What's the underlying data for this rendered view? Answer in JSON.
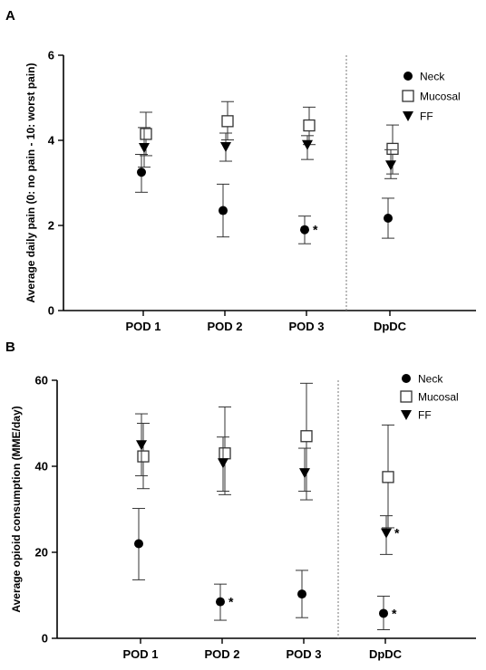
{
  "chart_data": [
    {
      "type": "scatter",
      "panel": "A",
      "title": "",
      "ylabel": "Average daily pain (0: no pain - 10: worst pain)",
      "xlabel": "",
      "categories": [
        "POD 1",
        "POD 2",
        "POD 3",
        "DpDC"
      ],
      "ylim": [
        0,
        6
      ],
      "yticks": [
        "0",
        "2",
        "4",
        "6"
      ],
      "grid": false,
      "legend": "top-right",
      "separator_after_category": 2,
      "series": [
        {
          "name": "Neck",
          "marker": "filled-circle",
          "values": [
            3.25,
            2.35,
            1.9,
            2.17
          ],
          "err_low": [
            2.78,
            1.73,
            1.57,
            1.7
          ],
          "err_high": [
            3.67,
            2.97,
            2.22,
            2.64
          ],
          "annotations": [
            "",
            "",
            "*",
            ""
          ]
        },
        {
          "name": "Mucosal",
          "marker": "open-square",
          "values": [
            4.15,
            4.45,
            4.35,
            3.8
          ],
          "err_low": [
            3.64,
            4.01,
            3.9,
            3.21
          ],
          "err_high": [
            4.66,
            4.91,
            4.78,
            4.36
          ],
          "annotations": [
            "",
            "",
            "",
            ""
          ]
        },
        {
          "name": "FF",
          "marker": "filled-triangle-down",
          "values": [
            3.83,
            3.85,
            3.9,
            3.42
          ],
          "err_low": [
            3.37,
            3.51,
            3.55,
            3.1
          ],
          "err_high": [
            4.3,
            4.17,
            4.11,
            3.78
          ],
          "annotations": [
            "",
            "",
            "",
            ""
          ]
        }
      ]
    },
    {
      "type": "scatter",
      "panel": "B",
      "title": "",
      "ylabel": "Average opioid consumption (MME/day)",
      "xlabel": "",
      "categories": [
        "POD 1",
        "POD 2",
        "POD 3",
        "DpDC"
      ],
      "ylim": [
        0,
        60
      ],
      "yticks": [
        "0",
        "20",
        "40",
        "60"
      ],
      "grid": false,
      "legend": "top-right",
      "separator_after_category": 2,
      "series": [
        {
          "name": "Neck",
          "marker": "filled-circle",
          "values": [
            22,
            8.5,
            10.3,
            5.8
          ],
          "err_low": [
            13.6,
            4.2,
            4.8,
            2.0
          ],
          "err_high": [
            30.2,
            12.6,
            15.8,
            9.8
          ],
          "annotations": [
            "",
            "*",
            "",
            "*"
          ]
        },
        {
          "name": "Mucosal",
          "marker": "open-square",
          "values": [
            42.3,
            43.0,
            47.0,
            37.5
          ],
          "err_low": [
            34.8,
            33.4,
            32.2,
            25.7
          ],
          "err_high": [
            50.0,
            53.8,
            59.3,
            49.6
          ],
          "annotations": [
            "",
            "",
            "",
            ""
          ]
        },
        {
          "name": "FF",
          "marker": "filled-triangle-down",
          "values": [
            45.0,
            40.8,
            38.5,
            24.5
          ],
          "err_low": [
            37.8,
            34.2,
            34.2,
            19.5
          ],
          "err_high": [
            52.2,
            46.8,
            44.2,
            28.5
          ],
          "annotations": [
            "",
            "",
            "",
            "*"
          ]
        }
      ]
    }
  ]
}
